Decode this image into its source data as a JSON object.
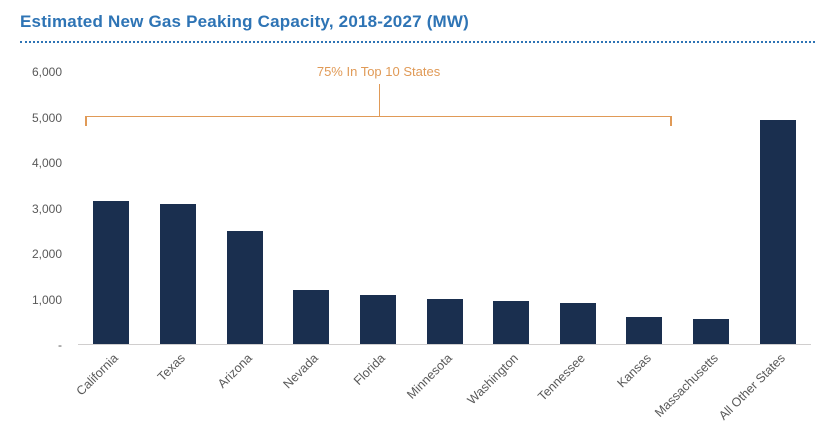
{
  "chart": {
    "title": "Estimated New Gas Peaking Capacity, 2018-2027 (MW)",
    "annotation_label": "75% In Top 10 States"
  },
  "chart_data": {
    "type": "bar",
    "title": "Estimated New Gas Peaking Capacity, 2018-2027 (MW)",
    "categories": [
      "California",
      "Texas",
      "Arizona",
      "Nevada",
      "Florida",
      "Minnesota",
      "Washington",
      "Tennessee",
      "Kansas",
      "Massachusetts",
      "All Other States"
    ],
    "values": [
      3150,
      3090,
      2500,
      1200,
      1090,
      1000,
      950,
      900,
      600,
      550,
      4950
    ],
    "xlabel": "",
    "ylabel": "",
    "ylim": [
      0,
      6000
    ],
    "ytick_labels": [
      "6,000",
      "5,000",
      "4,000",
      "3,000",
      "2,000",
      "1,000",
      "-"
    ],
    "ytick_values": [
      6000,
      5000,
      4000,
      3000,
      2000,
      1000,
      0
    ],
    "grid": false,
    "legend": "none",
    "annotation": {
      "text": "75% In Top 10 States",
      "spans_categories": [
        "California",
        "Massachusetts"
      ]
    },
    "colors": {
      "bar": "#1a2f4f",
      "annotation": "#e09a57",
      "title": "#2e74b5",
      "axis_text": "#595959",
      "baseline": "#d0cece"
    }
  }
}
